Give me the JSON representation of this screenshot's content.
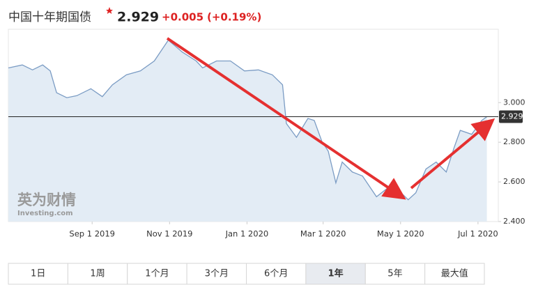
{
  "header": {
    "title": "中国十年期国债",
    "change": "+0.005",
    "change_pct": "(+0.19%)"
  },
  "chart_data": {
    "type": "line",
    "current_value": 2.929,
    "x": [
      "2019-06-27",
      "2019-07-08",
      "2019-07-16",
      "2019-07-24",
      "2019-07-30",
      "2019-08-04",
      "2019-08-12",
      "2019-08-20",
      "2019-08-31",
      "2019-09-09",
      "2019-09-17",
      "2019-09-28",
      "2019-10-09",
      "2019-10-20",
      "2019-10-31",
      "2019-11-11",
      "2019-11-22",
      "2019-11-27",
      "2019-12-08",
      "2019-12-19",
      "2019-12-30",
      "2020-01-10",
      "2020-01-21",
      "2020-01-29",
      "2020-02-01",
      "2020-02-09",
      "2020-02-18",
      "2020-02-23",
      "2020-02-29",
      "2020-03-05",
      "2020-03-11",
      "2020-03-16",
      "2020-03-24",
      "2020-04-01",
      "2020-04-12",
      "2020-04-21",
      "2020-04-29",
      "2020-05-07",
      "2020-05-13",
      "2020-05-21",
      "2020-05-29",
      "2020-06-06",
      "2020-06-12",
      "2020-06-17",
      "2020-06-26",
      "2020-07-04",
      "2020-07-08"
    ],
    "series": [
      {
        "color": "#7b9cc4",
        "values": [
          3.175,
          3.19,
          3.165,
          3.19,
          3.16,
          3.05,
          3.025,
          3.035,
          3.07,
          3.03,
          3.09,
          3.14,
          3.16,
          3.21,
          3.315,
          3.255,
          3.21,
          3.175,
          3.21,
          3.21,
          3.16,
          3.165,
          3.14,
          3.09,
          2.895,
          2.825,
          2.92,
          2.91,
          2.805,
          2.755,
          2.595,
          2.7,
          2.65,
          2.63,
          2.525,
          2.57,
          2.56,
          2.51,
          2.545,
          2.665,
          2.7,
          2.65,
          2.77,
          2.86,
          2.84,
          2.91,
          2.929
        ]
      }
    ],
    "xlim": [
      "2019-06-27",
      "2020-07-17"
    ],
    "xticks": [
      {
        "value": "2019-09-01",
        "label": "Sep 1 2019"
      },
      {
        "value": "2019-11-01",
        "label": "Nov 1 2019"
      },
      {
        "value": "2020-01-01",
        "label": "Jan 1 2020"
      },
      {
        "value": "2020-03-01",
        "label": "Mar 1 2020"
      },
      {
        "value": "2020-05-01",
        "label": "May 1 2020"
      },
      {
        "value": "2020-07-01",
        "label": "Jul 1 2020"
      }
    ],
    "ylim": [
      2.4,
      3.37
    ],
    "yticks": [
      {
        "value": 2.4,
        "label": "2.400"
      },
      {
        "value": 2.6,
        "label": "2.600"
      },
      {
        "value": 2.8,
        "label": "2.800"
      },
      {
        "value": 3.0,
        "label": "3.000"
      }
    ],
    "watermark": {
      "brand": "英为财情",
      "site": "Investing.com"
    }
  },
  "range_buttons": [
    "1日",
    "1周",
    "1个月",
    "3个月",
    "6个月",
    "1年",
    "5年",
    "最大值"
  ],
  "selected_range": 5
}
